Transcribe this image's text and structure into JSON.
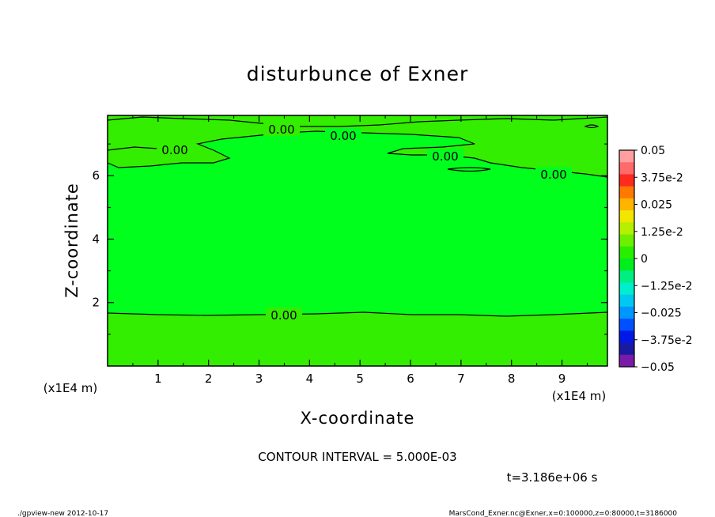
{
  "chart_data": {
    "type": "heatmap",
    "title": "disturbunce of Exner",
    "xlabel": "X-coordinate",
    "ylabel": "Z-coordinate",
    "x_unit": "(x1E4 m)",
    "y_unit": "(x1E4 m)",
    "xlim": [
      0,
      9.9
    ],
    "ylim": [
      0,
      7.9
    ],
    "x_ticks": [
      "1",
      "2",
      "3",
      "4",
      "5",
      "6",
      "7",
      "8",
      "9"
    ],
    "y_ticks": [
      "2",
      "4",
      "6"
    ],
    "contour_labels": [
      "0.00",
      "0.00",
      "0.00",
      "0.00",
      "0.00",
      "0.00"
    ],
    "contour_interval_text": "CONTOUR INTERVAL = 5.000E-03",
    "time_text": "t=3.186e+06 s",
    "colorbar": {
      "labels": [
        "0.05",
        "3.75e-2",
        "0.025",
        "1.25e-2",
        "0",
        "−1.25e-2",
        "−0.025",
        "−3.75e-2",
        "−0.05"
      ],
      "colors": [
        "#ff9f9f",
        "#ff6a6a",
        "#ff2a1e",
        "#ff7800",
        "#ffb400",
        "#f0e600",
        "#b4f000",
        "#6eee00",
        "#28ee00",
        "#00ee1c",
        "#00ee82",
        "#00eecc",
        "#00c8f0",
        "#0096ff",
        "#0050ff",
        "#0018e6",
        "#1a1aa0",
        "#7a1aa8"
      ]
    },
    "fill_colors": {
      "main": "#00ff1d",
      "band": "#33ee00"
    }
  },
  "footer": {
    "left": "./gpview-new  2012-10-17",
    "right": "MarsCond_Exner.nc@Exner,x=0:100000,z=0:80000,t=3186000"
  }
}
